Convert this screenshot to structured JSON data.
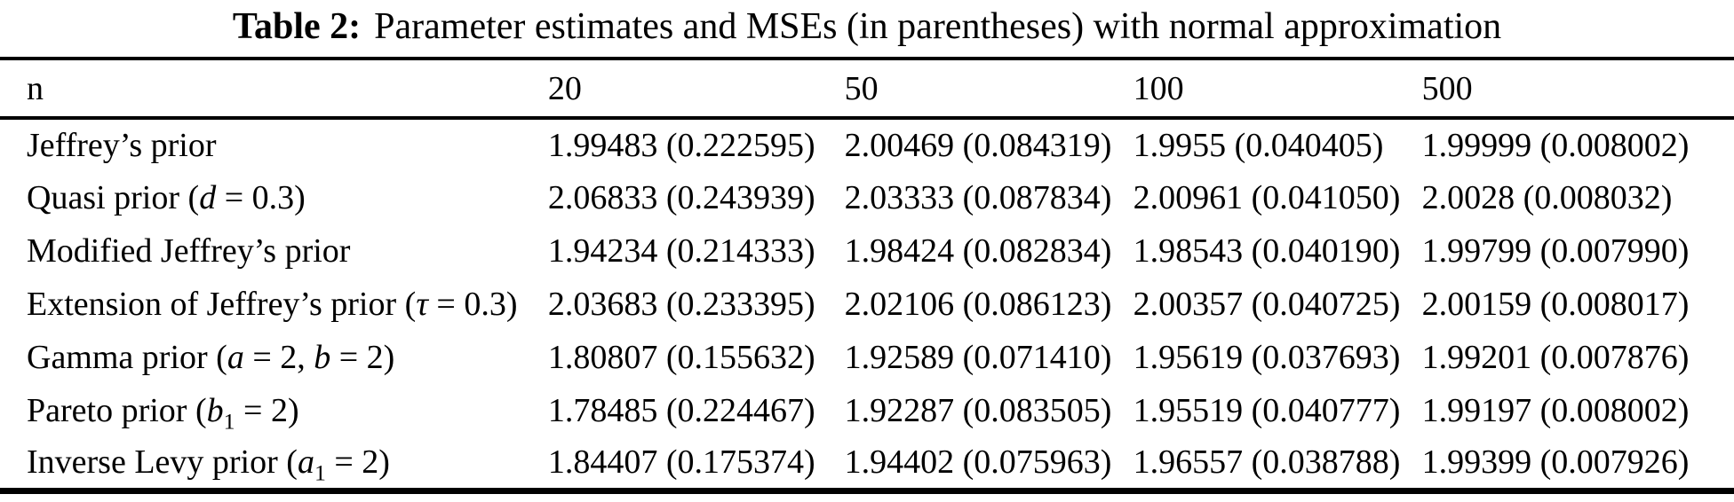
{
  "page": {
    "background_color": "#ffffff",
    "text_color": "#000000"
  },
  "table": {
    "title_bold": "Table 2:",
    "title_rest": "Parameter estimates and MSEs (in parentheses) with normal approximation",
    "columns": [
      "n",
      "20",
      "50",
      "100",
      "500"
    ],
    "rows": [
      {
        "label_segments": [
          {
            "text": "Jeffrey’s prior"
          }
        ],
        "values": [
          "1.99483 (0.222595)",
          "2.00469 (0.084319)",
          "1.9955 (0.040405)",
          "1.99999 (0.008002)"
        ]
      },
      {
        "label_segments": [
          {
            "text": "Quasi prior ("
          },
          {
            "text": "d",
            "italic": true
          },
          {
            "text": " = 0.3)"
          }
        ],
        "values": [
          "2.06833 (0.243939)",
          "2.03333 (0.087834)",
          "2.00961 (0.041050)",
          "2.0028 (0.008032)"
        ]
      },
      {
        "label_segments": [
          {
            "text": "Modified Jeffrey’s prior"
          }
        ],
        "values": [
          "1.94234 (0.214333)",
          "1.98424 (0.082834)",
          "1.98543 (0.040190)",
          "1.99799 (0.007990)"
        ]
      },
      {
        "label_segments": [
          {
            "text": "Extension of Jeffrey’s prior ("
          },
          {
            "text": "τ",
            "italic": true
          },
          {
            "text": " = 0.3)"
          }
        ],
        "values": [
          "2.03683 (0.233395)",
          "2.02106 (0.086123)",
          "2.00357 (0.040725)",
          "2.00159 (0.008017)"
        ]
      },
      {
        "label_segments": [
          {
            "text": "Gamma prior ("
          },
          {
            "text": "a",
            "italic": true
          },
          {
            "text": " = 2, "
          },
          {
            "text": "b",
            "italic": true
          },
          {
            "text": " = 2)"
          }
        ],
        "values": [
          "1.80807 (0.155632)",
          "1.92589 (0.071410)",
          "1.95619 (0.037693)",
          "1.99201 (0.007876)"
        ]
      },
      {
        "label_segments": [
          {
            "text": "Pareto prior ("
          },
          {
            "text": "b",
            "italic": true
          },
          {
            "text": "1",
            "sub": true
          },
          {
            "text": " = 2)"
          }
        ],
        "values": [
          "1.78485 (0.224467)",
          "1.92287 (0.083505)",
          "1.95519 (0.040777)",
          "1.99197 (0.008002)"
        ]
      },
      {
        "label_segments": [
          {
            "text": "Inverse Levy prior ("
          },
          {
            "text": "a",
            "italic": true
          },
          {
            "text": "1",
            "sub": true
          },
          {
            "text": " = 2)"
          }
        ],
        "values": [
          "1.84407 (0.175374)",
          "1.94402 (0.075963)",
          "1.96557 (0.038788)",
          "1.99399 (0.007926)"
        ]
      }
    ],
    "column_widths_pct": [
      31.6,
      17.1,
      16.65,
      16.65,
      18.0
    ]
  }
}
